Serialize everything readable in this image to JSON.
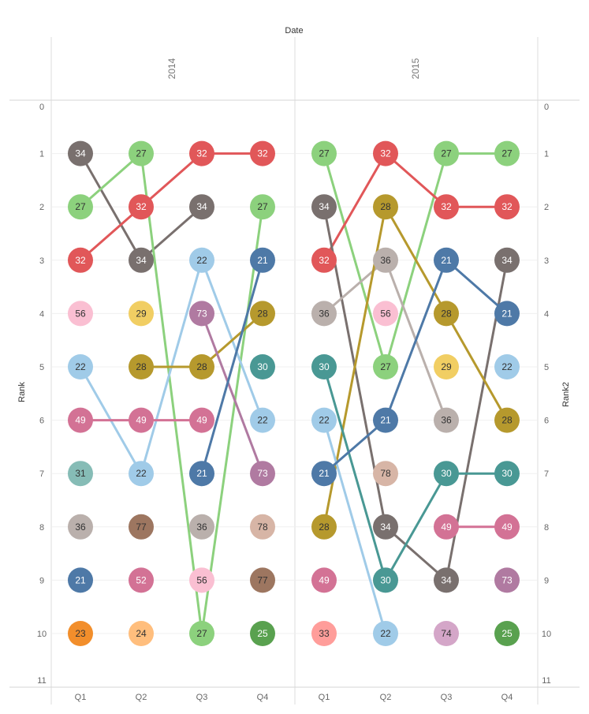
{
  "chart_data": {
    "type": "bump",
    "title": "Date",
    "ylabel": "Rank",
    "ylabel_right": "Rank2",
    "ylim": [
      0,
      11
    ],
    "y_ticks": [
      0,
      1,
      2,
      3,
      4,
      5,
      6,
      7,
      8,
      9,
      10,
      11
    ],
    "years": [
      "2014",
      "2015"
    ],
    "quarters": [
      "Q1",
      "Q2",
      "Q3",
      "Q4"
    ],
    "colors": {
      "21": "#4e79a7",
      "22": "#a0cbe8",
      "23": "#f28e2b",
      "24": "#ffbe7d",
      "25": "#59a14f",
      "27": "#8cd17d",
      "28": "#b6992d",
      "29": "#f1ce63",
      "30": "#499894",
      "31": "#86bcb6",
      "32": "#e15759",
      "33": "#ff9d9a",
      "34": "#79706e",
      "36": "#bab0ac",
      "49": "#d37295",
      "52": "#d37295",
      "56": "#fabfd2",
      "73": "#b07aa1",
      "74": "#d4a6c8",
      "77": "#9d7660",
      "78": "#d7b5a6"
    },
    "light_label_keys": [
      "22",
      "23",
      "24",
      "27",
      "28",
      "29",
      "31",
      "33",
      "36",
      "56",
      "74",
      "77",
      "78"
    ],
    "ranks": {
      "2014": {
        "Q1": [
          {
            "r": 1,
            "k": "34"
          },
          {
            "r": 2,
            "k": "27"
          },
          {
            "r": 3,
            "k": "32"
          },
          {
            "r": 4,
            "k": "56"
          },
          {
            "r": 5,
            "k": "22"
          },
          {
            "r": 6,
            "k": "49"
          },
          {
            "r": 7,
            "k": "31"
          },
          {
            "r": 8,
            "k": "36"
          },
          {
            "r": 9,
            "k": "21"
          },
          {
            "r": 10,
            "k": "23"
          }
        ],
        "Q2": [
          {
            "r": 1,
            "k": "27"
          },
          {
            "r": 2,
            "k": "32"
          },
          {
            "r": 3,
            "k": "34"
          },
          {
            "r": 4,
            "k": "29"
          },
          {
            "r": 5,
            "k": "28"
          },
          {
            "r": 6,
            "k": "49"
          },
          {
            "r": 7,
            "k": "22"
          },
          {
            "r": 8,
            "k": "77"
          },
          {
            "r": 9,
            "k": "52"
          },
          {
            "r": 10,
            "k": "24"
          }
        ],
        "Q3": [
          {
            "r": 1,
            "k": "32"
          },
          {
            "r": 2,
            "k": "34"
          },
          {
            "r": 3,
            "k": "22"
          },
          {
            "r": 4,
            "k": "73"
          },
          {
            "r": 5,
            "k": "28"
          },
          {
            "r": 6,
            "k": "49"
          },
          {
            "r": 7,
            "k": "21"
          },
          {
            "r": 8,
            "k": "36"
          },
          {
            "r": 9,
            "k": "56"
          },
          {
            "r": 10,
            "k": "27"
          }
        ],
        "Q4": [
          {
            "r": 1,
            "k": "32"
          },
          {
            "r": 2,
            "k": "27"
          },
          {
            "r": 3,
            "k": "21"
          },
          {
            "r": 4,
            "k": "28"
          },
          {
            "r": 5,
            "k": "30"
          },
          {
            "r": 6,
            "k": "22"
          },
          {
            "r": 7,
            "k": "73"
          },
          {
            "r": 8,
            "k": "78"
          },
          {
            "r": 9,
            "k": "77"
          },
          {
            "r": 10,
            "k": "25"
          }
        ]
      },
      "2015": {
        "Q1": [
          {
            "r": 1,
            "k": "27"
          },
          {
            "r": 2,
            "k": "34"
          },
          {
            "r": 3,
            "k": "32"
          },
          {
            "r": 4,
            "k": "36"
          },
          {
            "r": 5,
            "k": "30"
          },
          {
            "r": 6,
            "k": "22"
          },
          {
            "r": 7,
            "k": "21"
          },
          {
            "r": 8,
            "k": "28"
          },
          {
            "r": 9,
            "k": "49"
          },
          {
            "r": 10,
            "k": "33"
          }
        ],
        "Q2": [
          {
            "r": 1,
            "k": "32"
          },
          {
            "r": 2,
            "k": "28"
          },
          {
            "r": 3,
            "k": "36"
          },
          {
            "r": 4,
            "k": "56"
          },
          {
            "r": 5,
            "k": "27"
          },
          {
            "r": 6,
            "k": "21"
          },
          {
            "r": 7,
            "k": "78"
          },
          {
            "r": 8,
            "k": "34"
          },
          {
            "r": 9,
            "k": "30"
          },
          {
            "r": 10,
            "k": "22"
          }
        ],
        "Q3": [
          {
            "r": 1,
            "k": "27"
          },
          {
            "r": 2,
            "k": "32"
          },
          {
            "r": 3,
            "k": "21"
          },
          {
            "r": 4,
            "k": "28"
          },
          {
            "r": 5,
            "k": "29"
          },
          {
            "r": 6,
            "k": "36"
          },
          {
            "r": 7,
            "k": "30"
          },
          {
            "r": 8,
            "k": "49"
          },
          {
            "r": 9,
            "k": "34"
          },
          {
            "r": 10,
            "k": "74"
          }
        ],
        "Q4": [
          {
            "r": 1,
            "k": "27"
          },
          {
            "r": 2,
            "k": "32"
          },
          {
            "r": 3,
            "k": "34"
          },
          {
            "r": 4,
            "k": "21"
          },
          {
            "r": 5,
            "k": "22"
          },
          {
            "r": 6,
            "k": "28"
          },
          {
            "r": 7,
            "k": "30"
          },
          {
            "r": 8,
            "k": "49"
          },
          {
            "r": 9,
            "k": "73"
          },
          {
            "r": 10,
            "k": "25"
          }
        ]
      }
    },
    "connections": {
      "2014": [
        {
          "k": "34",
          "path": [
            1,
            3,
            2
          ]
        },
        {
          "k": "27",
          "path": [
            2,
            1,
            10,
            2
          ]
        },
        {
          "k": "32",
          "path": [
            3,
            2,
            1,
            1
          ]
        },
        {
          "k": "22",
          "path": [
            5,
            7,
            3,
            6
          ]
        },
        {
          "k": "49",
          "path": [
            6,
            6,
            6
          ]
        },
        {
          "k": "28",
          "path": [
            null,
            5,
            5,
            4
          ]
        },
        {
          "k": "73",
          "path": [
            null,
            null,
            4,
            7
          ]
        },
        {
          "k": "21",
          "path": [
            null,
            null,
            7,
            3
          ]
        }
      ],
      "2015": [
        {
          "k": "27",
          "path": [
            1,
            5,
            1,
            1
          ]
        },
        {
          "k": "32",
          "path": [
            3,
            1,
            2,
            2
          ]
        },
        {
          "k": "34",
          "path": [
            2,
            8,
            9,
            3
          ]
        },
        {
          "k": "36",
          "path": [
            4,
            3,
            6
          ]
        },
        {
          "k": "28",
          "path": [
            8,
            2,
            4,
            6
          ]
        },
        {
          "k": "30",
          "path": [
            5,
            9,
            7,
            7
          ]
        },
        {
          "k": "22",
          "path": [
            6,
            10
          ]
        },
        {
          "k": "21",
          "path": [
            7,
            6,
            3,
            4
          ]
        },
        {
          "k": "49",
          "path": [
            null,
            null,
            8,
            8
          ]
        }
      ]
    }
  }
}
